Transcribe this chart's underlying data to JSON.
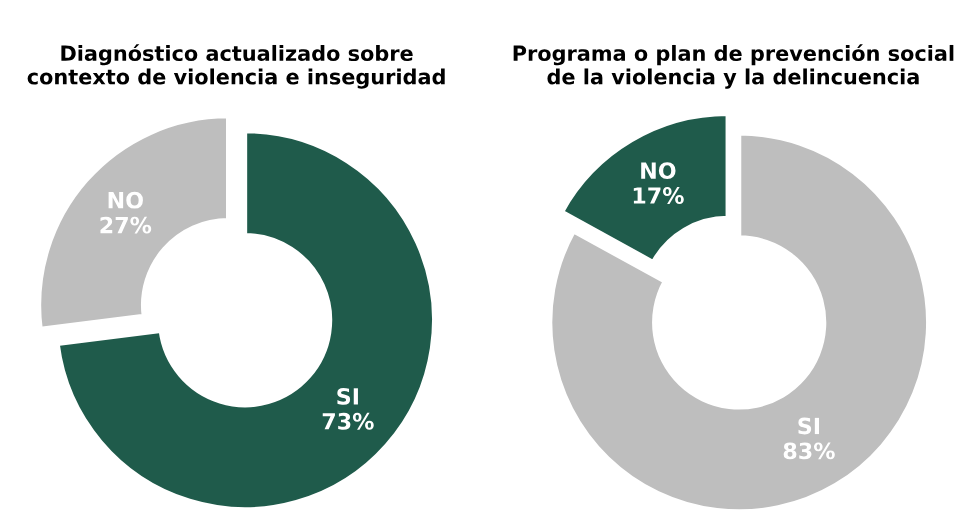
{
  "chart_data": [
    {
      "type": "donut",
      "title": "Diagnóstico actualizado sobre\ncontexto de violencia e inseguridad",
      "categories": [
        "SI",
        "NO"
      ],
      "values": [
        73,
        27
      ],
      "value_labels": [
        "73%",
        "27%"
      ],
      "colors": [
        "#1f5b4b",
        "#bebebe"
      ]
    },
    {
      "type": "donut",
      "title": "Programa o plan de prevención social\nde la violencia y la delincuencia",
      "categories": [
        "SI",
        "NO"
      ],
      "values": [
        83,
        17
      ],
      "value_labels": [
        "83%",
        "17%"
      ],
      "colors": [
        "#bebebe",
        "#1f5b4b"
      ]
    }
  ]
}
